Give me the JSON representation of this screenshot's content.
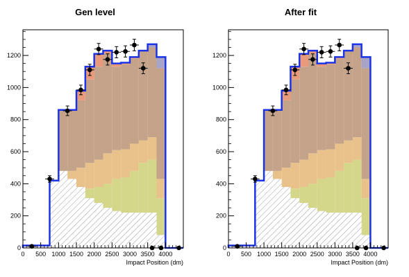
{
  "chart_data": [
    {
      "type": "bar",
      "title": "Gen level",
      "xlabel": "Impact Position (dm)",
      "ylabel": "",
      "xlim": [
        0,
        4500
      ],
      "ylim": [
        0,
        1360
      ],
      "bin_edges": [
        0,
        250,
        500,
        750,
        1000,
        1250,
        1500,
        1750,
        2000,
        2250,
        2500,
        2750,
        3000,
        3250,
        3500,
        3750,
        4000,
        4250,
        4500
      ],
      "xticks": [
        "0",
        "500",
        "1000",
        "1500",
        "2000",
        "2500",
        "3000",
        "3500",
        "4000"
      ],
      "yticks": [
        "0",
        "200",
        "400",
        "600",
        "800",
        "1000",
        "1200"
      ],
      "stack": [
        {
          "pattern": "hatched",
          "color": "#555555",
          "values": [
            15,
            15,
            15,
            420,
            480,
            430,
            380,
            310,
            280,
            250,
            230,
            220,
            220,
            220,
            220,
            80,
            0,
            0
          ]
        },
        {
          "color": "#d4d68a",
          "values": [
            0,
            0,
            0,
            0,
            0,
            0,
            0,
            60,
            100,
            150,
            200,
            220,
            260,
            310,
            330,
            230,
            0,
            0
          ]
        },
        {
          "color": "#e8c28a",
          "values": [
            0,
            0,
            0,
            0,
            0,
            50,
            120,
            160,
            170,
            190,
            180,
            175,
            170,
            140,
            140,
            120,
            0,
            0
          ]
        },
        {
          "color": "#c4a38a",
          "values": [
            0,
            0,
            0,
            0,
            380,
            380,
            420,
            520,
            580,
            620,
            520,
            530,
            530,
            560,
            560,
            690,
            0,
            0
          ]
        },
        {
          "color": "#e89a7a",
          "values": [
            0,
            0,
            0,
            0,
            0,
            0,
            60,
            80,
            80,
            20,
            20,
            10,
            10,
            0,
            0,
            0,
            0,
            0
          ]
        },
        {
          "color": "#a8a4c8",
          "values": [
            0,
            0,
            0,
            0,
            0,
            0,
            0,
            0,
            0,
            0,
            0,
            0,
            0,
            0,
            20,
            70,
            0,
            0
          ]
        }
      ],
      "total_line": {
        "color": "#1a33e6",
        "values": [
          15,
          15,
          15,
          420,
          860,
          860,
          980,
          1130,
          1210,
          1230,
          1150,
          1155,
          1190,
          1230,
          1270,
          1190,
          0,
          0
        ]
      },
      "points": {
        "x": [
          250,
          750,
          1250,
          1625,
          1875,
          2125,
          2375,
          2625,
          2875,
          3125,
          3375,
          3625,
          3875,
          4375
        ],
        "y": [
          10,
          430,
          855,
          985,
          1110,
          1240,
          1175,
          1220,
          1225,
          1265,
          1120,
          0,
          0,
          0
        ],
        "yerr": [
          5,
          20,
          30,
          30,
          35,
          35,
          35,
          35,
          35,
          36,
          34,
          0,
          0,
          0
        ],
        "xerr": [
          125,
          125,
          125,
          125,
          125,
          125,
          125,
          125,
          125,
          125,
          125,
          0,
          0,
          0
        ]
      }
    },
    {
      "type": "bar",
      "title": "After fit",
      "xlabel": "Impact Position (dm)",
      "ylabel": "",
      "xlim": [
        0,
        4500
      ],
      "ylim": [
        0,
        1360
      ],
      "bin_edges": [
        0,
        250,
        500,
        750,
        1000,
        1250,
        1500,
        1750,
        2000,
        2250,
        2500,
        2750,
        3000,
        3250,
        3500,
        3750,
        4000,
        4250,
        4500
      ],
      "xticks": [
        "0",
        "500",
        "1000",
        "1500",
        "2000",
        "2500",
        "3000",
        "3500",
        "4000"
      ],
      "yticks": [
        "0",
        "200",
        "400",
        "600",
        "800",
        "1000",
        "1200"
      ],
      "stack": [
        {
          "pattern": "hatched",
          "color": "#555555",
          "values": [
            15,
            15,
            15,
            420,
            480,
            430,
            380,
            310,
            280,
            250,
            230,
            220,
            220,
            220,
            220,
            80,
            0,
            0
          ]
        },
        {
          "color": "#d4d68a",
          "values": [
            0,
            0,
            0,
            0,
            0,
            0,
            0,
            60,
            100,
            150,
            200,
            220,
            260,
            310,
            330,
            230,
            0,
            0
          ]
        },
        {
          "color": "#e8c28a",
          "values": [
            0,
            0,
            0,
            0,
            0,
            50,
            120,
            160,
            170,
            190,
            180,
            175,
            170,
            140,
            140,
            120,
            0,
            0
          ]
        },
        {
          "color": "#c4a38a",
          "values": [
            0,
            0,
            0,
            0,
            380,
            380,
            420,
            520,
            580,
            620,
            520,
            530,
            530,
            560,
            560,
            690,
            0,
            0
          ]
        },
        {
          "color": "#e89a7a",
          "values": [
            0,
            0,
            0,
            0,
            0,
            0,
            60,
            80,
            80,
            20,
            20,
            10,
            10,
            0,
            0,
            0,
            0,
            0
          ]
        },
        {
          "color": "#a8a4c8",
          "values": [
            0,
            0,
            0,
            0,
            0,
            0,
            0,
            0,
            0,
            0,
            0,
            0,
            0,
            0,
            20,
            70,
            0,
            0
          ]
        }
      ],
      "total_line": {
        "color": "#1a33e6",
        "values": [
          15,
          15,
          15,
          420,
          860,
          860,
          980,
          1130,
          1210,
          1230,
          1150,
          1155,
          1190,
          1230,
          1270,
          1190,
          0,
          0
        ]
      },
      "points": {
        "x": [
          250,
          750,
          1250,
          1625,
          1875,
          2125,
          2375,
          2625,
          2875,
          3125,
          3375,
          3625,
          3875,
          4375
        ],
        "y": [
          10,
          430,
          855,
          985,
          1110,
          1240,
          1175,
          1220,
          1225,
          1265,
          1120,
          0,
          0,
          0
        ],
        "yerr": [
          5,
          20,
          30,
          30,
          35,
          35,
          35,
          35,
          35,
          36,
          34,
          0,
          0,
          0
        ],
        "xerr": [
          125,
          125,
          125,
          125,
          125,
          125,
          125,
          125,
          125,
          125,
          125,
          0,
          0,
          0
        ]
      }
    }
  ]
}
